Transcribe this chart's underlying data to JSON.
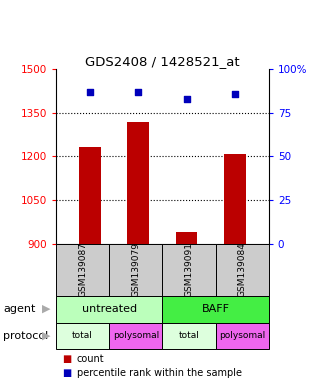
{
  "title": "GDS2408 / 1428521_at",
  "samples": [
    "GSM139087",
    "GSM139079",
    "GSM139091",
    "GSM139084"
  ],
  "bar_values": [
    1232,
    1320,
    940,
    1210
  ],
  "scatter_values": [
    87,
    87,
    83,
    86
  ],
  "ylim_left": [
    900,
    1500
  ],
  "ylim_right": [
    0,
    100
  ],
  "yticks_left": [
    900,
    1050,
    1200,
    1350,
    1500
  ],
  "yticks_right": [
    0,
    25,
    50,
    75,
    100
  ],
  "ytick_labels_right": [
    "0",
    "25",
    "50",
    "75",
    "100%"
  ],
  "bar_color": "#bb0000",
  "scatter_color": "#0000bb",
  "agent_labels": [
    "untreated",
    "BAFF"
  ],
  "agent_spans": [
    2,
    2
  ],
  "agent_colors": [
    "#bbffbb",
    "#44ee44"
  ],
  "protocol_labels": [
    "total",
    "polysomal",
    "total",
    "polysomal"
  ],
  "protocol_colors": [
    "#ddffdd",
    "#ee66ee",
    "#ddffdd",
    "#ee66ee"
  ],
  "label_agent": "agent",
  "label_protocol": "protocol",
  "legend_count": "count",
  "legend_percentile": "percentile rank within the sample",
  "sample_box_color": "#cccccc",
  "grid_yticks": [
    1050,
    1200,
    1350
  ]
}
